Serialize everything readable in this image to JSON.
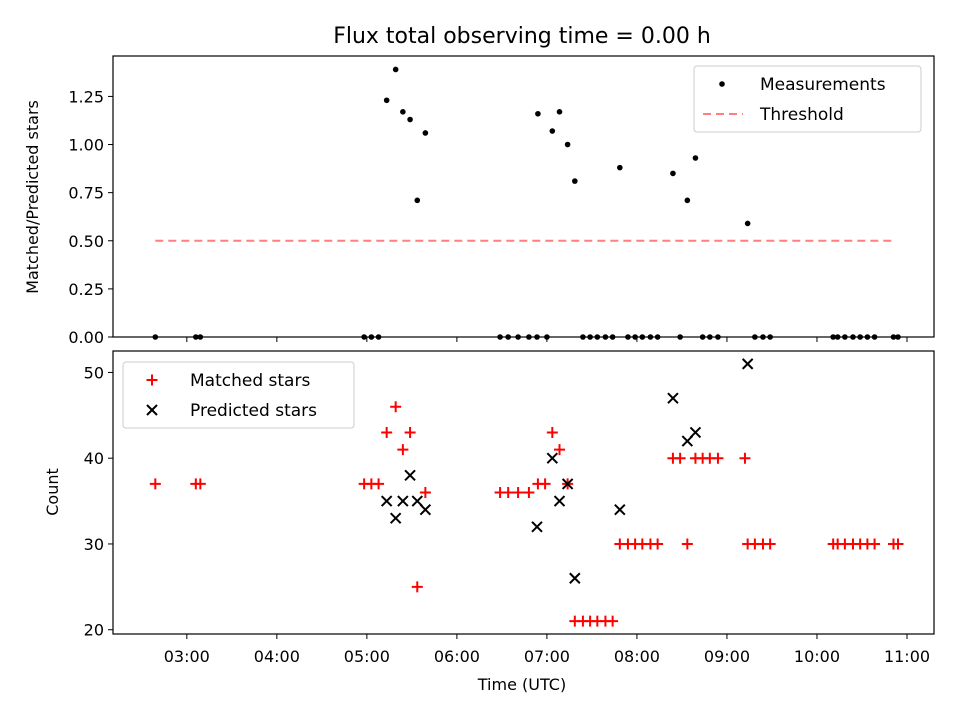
{
  "chart_data": [
    {
      "type": "scatter",
      "title": "Flux total observing time = 0.00 h",
      "xlabel": "",
      "ylabel": "Matched/Predicted stars",
      "ylim": [
        0.0,
        1.46
      ],
      "xlim_hours": [
        2.18,
        11.3
      ],
      "yticks": [
        "0.00",
        "0.25",
        "0.50",
        "0.75",
        "1.00",
        "1.25"
      ],
      "ytick_values": [
        0.0,
        0.25,
        0.5,
        0.75,
        1.0,
        1.25
      ],
      "legend_position": "top-right",
      "series": [
        {
          "name": "Measurements",
          "color": "#000000",
          "marker": "dot",
          "x": [
            2.65,
            3.1,
            3.15,
            4.97,
            5.05,
            5.13,
            5.22,
            5.32,
            5.4,
            5.48,
            5.56,
            5.65,
            6.48,
            6.57,
            6.68,
            6.8,
            6.9,
            7.0,
            6.89,
            7.06,
            7.14,
            7.23,
            7.31,
            7.4,
            7.48,
            7.56,
            7.65,
            7.73,
            7.81,
            7.9,
            7.98,
            8.06,
            8.15,
            8.23,
            8.4,
            8.48,
            8.56,
            8.65,
            8.73,
            8.81,
            8.9,
            9.23,
            9.31,
            9.4,
            9.48,
            10.18,
            10.23,
            10.31,
            10.4,
            10.48,
            10.56,
            10.64,
            10.85,
            10.9
          ],
          "y": [
            0,
            0,
            0,
            0,
            0,
            0,
            1.23,
            1.39,
            1.17,
            1.13,
            0.71,
            1.06,
            0,
            0,
            0,
            0,
            1.16,
            0,
            0,
            1.07,
            1.17,
            1.0,
            0.81,
            0,
            0,
            0,
            0,
            0,
            0.88,
            0,
            0,
            0,
            0,
            0,
            0.85,
            0,
            0.71,
            0.93,
            0,
            0,
            0,
            0.59,
            0,
            0,
            0,
            0,
            0,
            0,
            0,
            0,
            0,
            0,
            0,
            0
          ]
        },
        {
          "name": "Threshold",
          "color": "#ff7f7f",
          "marker": "dashed-line",
          "x": [
            2.65,
            10.88
          ],
          "y": [
            0.5,
            0.5
          ]
        }
      ]
    },
    {
      "type": "scatter",
      "title": "",
      "xlabel": "Time (UTC)",
      "ylabel": "Count",
      "ylim": [
        19.5,
        52.5
      ],
      "xlim_hours": [
        2.18,
        11.3
      ],
      "xticks": [
        "03:00",
        "04:00",
        "05:00",
        "06:00",
        "07:00",
        "08:00",
        "09:00",
        "10:00",
        "11:00"
      ],
      "xtick_values": [
        3,
        4,
        5,
        6,
        7,
        8,
        9,
        10,
        11
      ],
      "yticks": [
        "20",
        "30",
        "40",
        "50"
      ],
      "ytick_values": [
        20,
        30,
        40,
        50
      ],
      "legend_position": "top-left",
      "series": [
        {
          "name": "Matched stars",
          "color": "#ff0000",
          "marker": "plus",
          "x": [
            2.65,
            3.1,
            3.15,
            4.97,
            5.05,
            5.13,
            5.22,
            5.32,
            5.4,
            5.48,
            5.56,
            5.65,
            6.48,
            6.57,
            6.68,
            6.8,
            6.9,
            6.98,
            7.06,
            7.14,
            7.23,
            7.31,
            7.4,
            7.48,
            7.56,
            7.65,
            7.73,
            7.81,
            7.9,
            7.98,
            8.06,
            8.15,
            8.23,
            8.4,
            8.48,
            8.56,
            8.65,
            8.73,
            8.81,
            8.9,
            9.2,
            9.23,
            9.31,
            9.4,
            9.48,
            10.18,
            10.23,
            10.31,
            10.4,
            10.48,
            10.56,
            10.64,
            10.85,
            10.9
          ],
          "y": [
            37,
            37,
            37,
            37,
            37,
            37,
            43,
            46,
            41,
            43,
            25,
            36,
            36,
            36,
            36,
            36,
            37,
            37,
            43,
            41,
            37,
            21,
            21,
            21,
            21,
            21,
            21,
            30,
            30,
            30,
            30,
            30,
            30,
            40,
            40,
            30,
            40,
            40,
            40,
            40,
            40,
            30,
            30,
            30,
            30,
            30,
            30,
            30,
            30,
            30,
            30,
            30,
            30,
            30
          ]
        },
        {
          "name": "Predicted stars",
          "color": "#000000",
          "marker": "x",
          "x": [
            5.22,
            5.32,
            5.4,
            5.48,
            5.56,
            5.65,
            6.89,
            7.06,
            7.14,
            7.23,
            7.31,
            7.81,
            8.4,
            8.56,
            8.65,
            9.23
          ],
          "y": [
            35,
            33,
            35,
            38,
            35,
            34,
            32,
            40,
            35,
            37,
            26,
            34,
            47,
            42,
            43,
            51
          ]
        }
      ]
    }
  ]
}
